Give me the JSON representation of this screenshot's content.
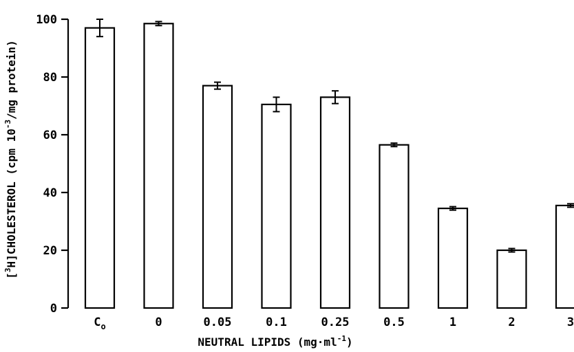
{
  "chart_data": {
    "type": "bar",
    "categories": [
      {
        "main": "C",
        "sub": "o"
      },
      {
        "main": "0",
        "sub": ""
      },
      {
        "main": "0.05",
        "sub": ""
      },
      {
        "main": "0.1",
        "sub": ""
      },
      {
        "main": "0.25",
        "sub": ""
      },
      {
        "main": "0.5",
        "sub": ""
      },
      {
        "main": "1",
        "sub": ""
      },
      {
        "main": "2",
        "sub": ""
      },
      {
        "main": "3",
        "sub": ""
      }
    ],
    "values": [
      97,
      98.5,
      77,
      70.5,
      73,
      56.5,
      34.5,
      20,
      35.5
    ],
    "errors": [
      3,
      0.7,
      1.2,
      2.5,
      2.2,
      0.6,
      0.6,
      0.6,
      0.6
    ],
    "ylim": [
      0,
      100
    ],
    "yticks": [
      0,
      20,
      40,
      60,
      80,
      100
    ],
    "xlabel": {
      "pre": "NEUTRAL LIPIDS (mg·ml",
      "sup": "-1",
      "post": ")"
    },
    "ylabel": {
      "pre": "[",
      "sup": "3",
      "mid": "H]CHOLESTEROL (cpm 10",
      "sup2": "-3",
      "post": "/mg protein)"
    },
    "grid": false,
    "bar_fill": "#ffffff",
    "bar_stroke": "#000000"
  }
}
